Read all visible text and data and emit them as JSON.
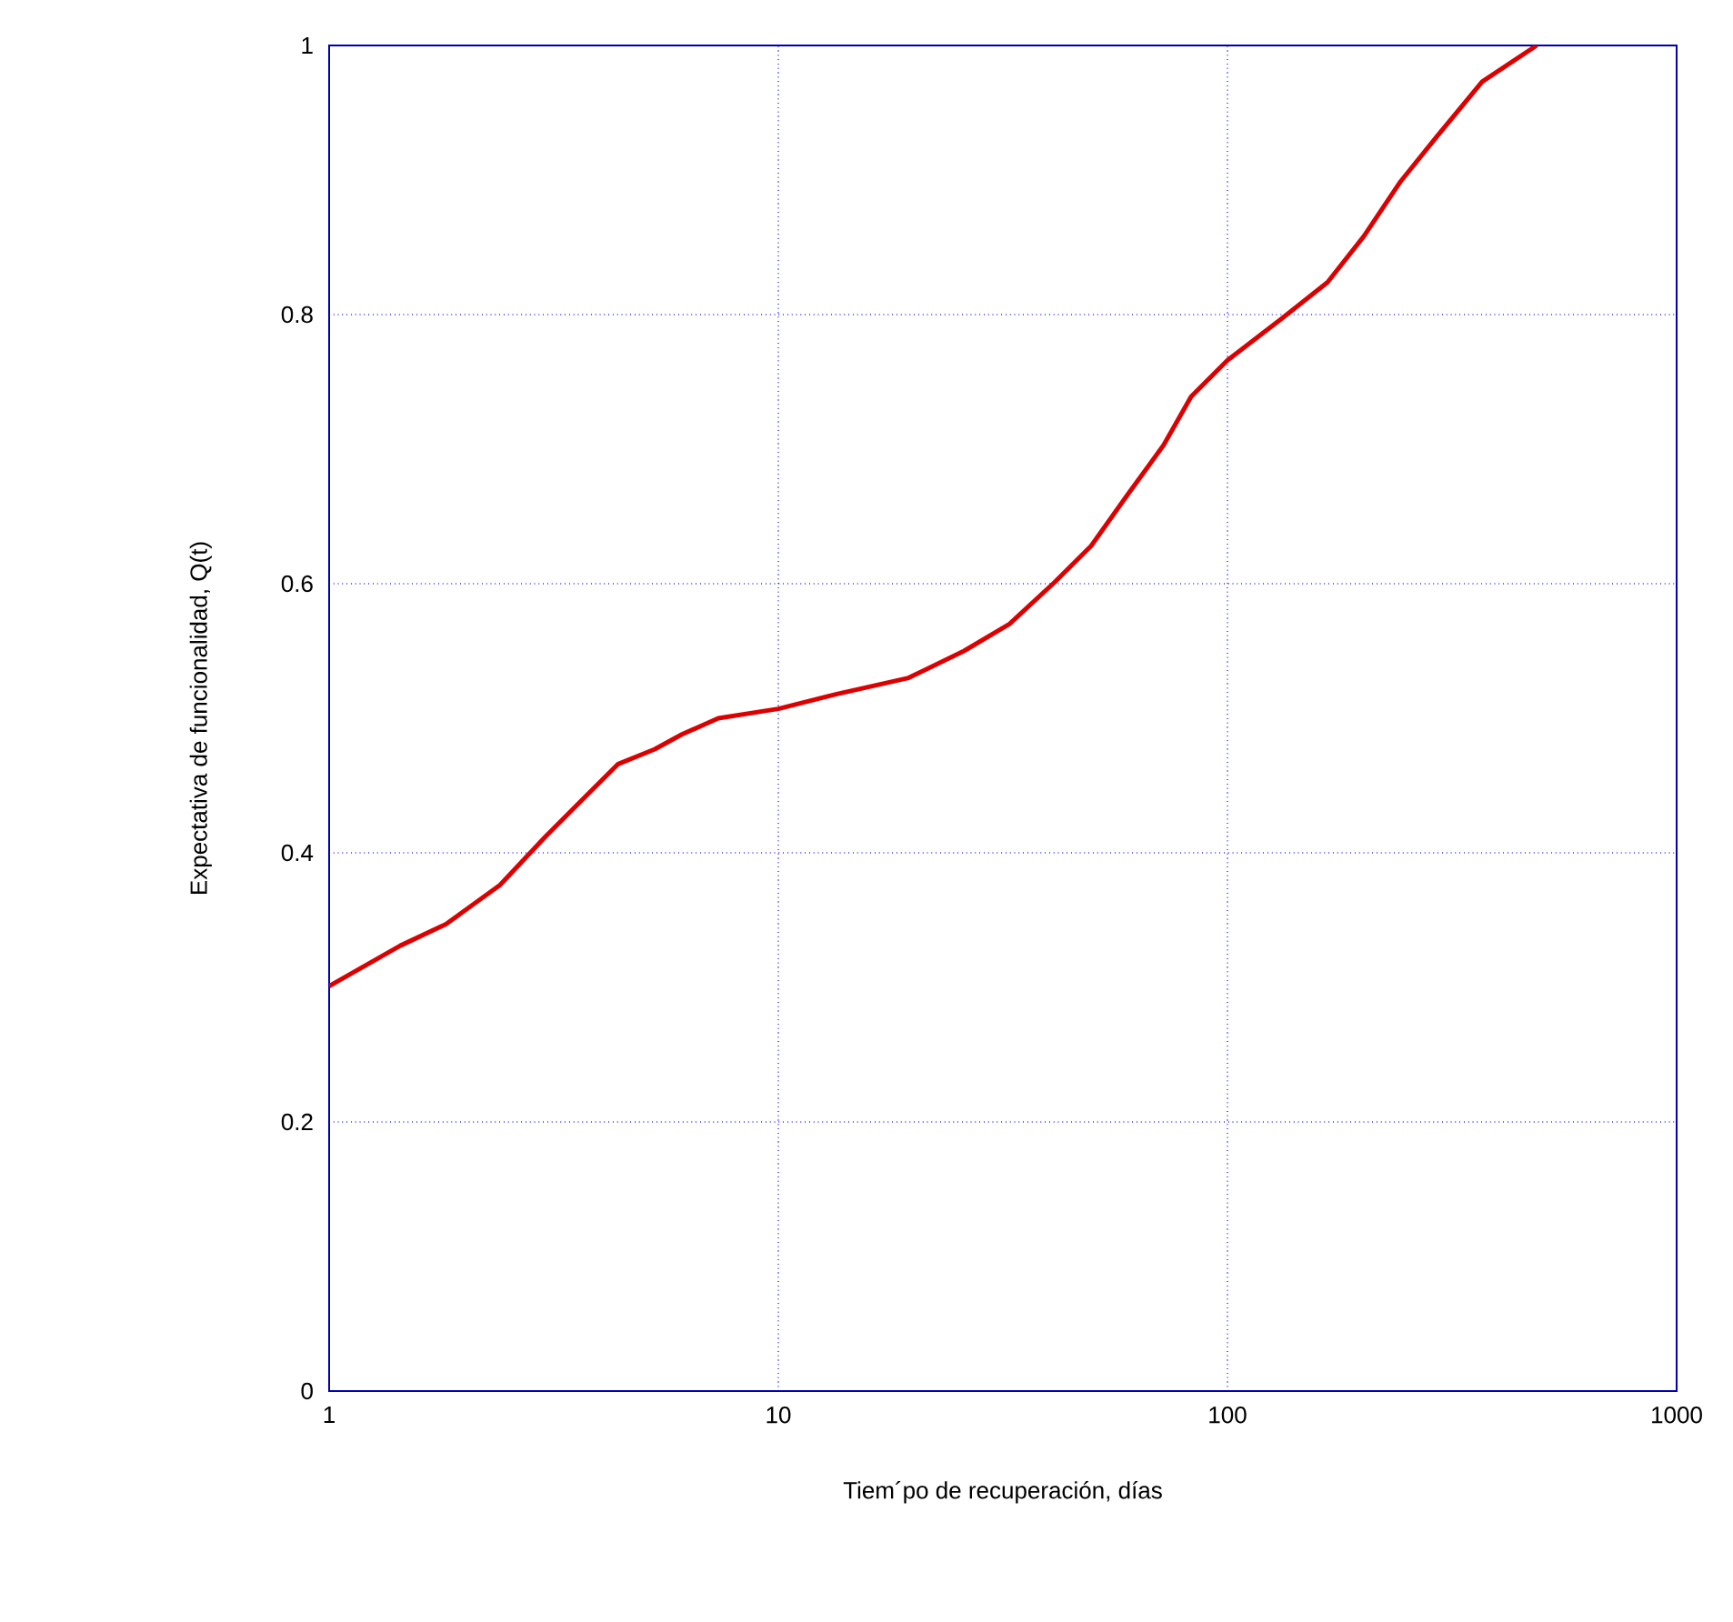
{
  "chart_data": {
    "type": "line",
    "xlabel": "Tiem´po de recuperación, días",
    "ylabel": "Expectativa de funcionalidad, Q(t)",
    "x": [
      1,
      1.44,
      1.82,
      2.4,
      3.03,
      3.65,
      4.4,
      5.31,
      6.1,
      7.35,
      10,
      13.5,
      19.5,
      25.9,
      32.7,
      41.2,
      49.7,
      59.9,
      72.1,
      83,
      100,
      132,
      167,
      201,
      243,
      292,
      369,
      488
    ],
    "series": [
      {
        "color": "#dd0000",
        "values": [
          0.301,
          0.331,
          0.347,
          0.376,
          0.412,
          0.439,
          0.466,
          0.477,
          0.488,
          0.5,
          0.507,
          0.518,
          0.53,
          0.55,
          0.57,
          0.601,
          0.628,
          0.666,
          0.703,
          0.739,
          0.766,
          0.797,
          0.824,
          0.858,
          0.899,
          0.932,
          0.973,
          1.0
        ]
      }
    ],
    "log": "x",
    "xlim": [
      1,
      1000
    ],
    "ylim": [
      0,
      1
    ],
    "xticks": [
      1,
      10,
      100,
      1000
    ],
    "yticks": [
      0,
      0.2,
      0.4,
      0.6,
      0.8,
      1
    ],
    "grid": true,
    "line_style": "solid",
    "marker": "none"
  }
}
